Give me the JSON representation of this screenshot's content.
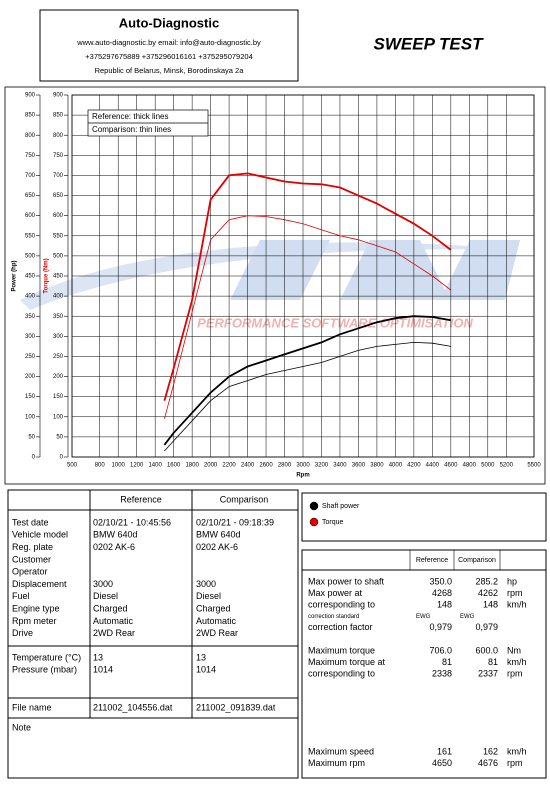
{
  "header": {
    "company": "Auto-Diagnostic",
    "contacts": "www.auto-diagnostic.by    email: info@auto-diagnostic.by",
    "phones": "+375297675889  +375296016161  +375295079204",
    "address": "Republic of Belarus, Minsk, Borodinskaya 2a",
    "title": "SWEEP TEST"
  },
  "chart_data": {
    "type": "line",
    "x_label": "Rpm",
    "y_label": "Power (hp)",
    "y2_label": "Torque (Nm)",
    "watermark": "PERFORMANCE SOFTWARE OPTIMISATION",
    "line_style_notes": [
      "Reference: thick lines",
      "Comparison: thin lines"
    ],
    "xlim": [
      500,
      5500
    ],
    "xticks": [
      500,
      800,
      1000,
      1200,
      1400,
      1600,
      1800,
      2000,
      2200,
      2400,
      2600,
      2800,
      3000,
      3200,
      3400,
      3600,
      3800,
      4000,
      4200,
      4400,
      4600,
      4800,
      5000,
      5200,
      5500
    ],
    "ylim": [
      0,
      900
    ],
    "yticks": [
      0,
      50,
      100,
      150,
      200,
      250,
      300,
      350,
      400,
      450,
      500,
      550,
      600,
      650,
      700,
      750,
      800,
      850,
      900
    ],
    "y2lim": [
      0,
      900
    ],
    "y2ticks": [
      0,
      50,
      100,
      150,
      200,
      250,
      300,
      350,
      400,
      450,
      500,
      550,
      600,
      650,
      700,
      750,
      800,
      850,
      900
    ],
    "grid": true,
    "x": [
      1500,
      1600,
      1800,
      2000,
      2200,
      2400,
      2600,
      2800,
      3000,
      3200,
      3400,
      3600,
      3800,
      4000,
      4200,
      4400,
      4600
    ],
    "series": [
      {
        "name": "Shaft power",
        "color": "#000000",
        "line_width": 1.8,
        "values": [
          30,
          60,
          110,
          160,
          200,
          225,
          240,
          255,
          270,
          285,
          305,
          320,
          335,
          345,
          350,
          348,
          340
        ]
      },
      {
        "name": "Shaft power",
        "color": "#000000",
        "line_width": 0.8,
        "values": [
          15,
          40,
          90,
          140,
          175,
          190,
          205,
          215,
          225,
          235,
          250,
          265,
          275,
          280,
          285,
          283,
          275
        ]
      },
      {
        "name": "Torque",
        "color": "#e00000",
        "line_width": 1.8,
        "axis": "y2",
        "values": [
          140,
          220,
          390,
          640,
          700,
          705,
          695,
          685,
          680,
          678,
          670,
          650,
          630,
          605,
          580,
          550,
          515
        ]
      },
      {
        "name": "Torque",
        "color": "#e00000",
        "line_width": 0.8,
        "axis": "y2",
        "values": [
          95,
          180,
          360,
          540,
          590,
          600,
          598,
          590,
          580,
          565,
          550,
          540,
          525,
          510,
          480,
          450,
          415
        ]
      }
    ]
  },
  "vehicle_table": {
    "columns": [
      "Reference",
      "Comparison"
    ],
    "groups": [
      [
        [
          "Test date",
          "02/10/21 - 10:45:56",
          "02/10/21 - 09:18:39"
        ],
        [
          "Vehicle model",
          "BMW 640d",
          "BMW 640d"
        ],
        [
          "Reg. plate",
          "0202 AK-6",
          "0202 AK-6"
        ],
        [
          "Customer"
        ],
        [
          "Operator"
        ],
        [
          "Displacement",
          "3000",
          "3000"
        ],
        [
          "Fuel",
          "Diesel",
          "Diesel"
        ],
        [
          "Engine type",
          "Charged",
          "Charged"
        ],
        [
          "Rpm meter",
          "Automatic",
          "Automatic"
        ],
        [
          "Drive",
          "2WD Rear",
          "2WD Rear"
        ]
      ],
      [
        [
          "Temperature (°C)",
          "13",
          "13"
        ],
        [
          "Pressure (mbar)",
          "1014",
          "1014"
        ]
      ],
      [
        [
          "File name",
          "211002_104556.dat",
          "211002_091839.dat"
        ]
      ],
      [
        [
          "Note"
        ]
      ]
    ]
  },
  "results_table": {
    "columns": [
      "Reference",
      "Comparison"
    ],
    "groups": [
      [
        [
          "Max power to shaft",
          "350.0",
          "285.2",
          "hp"
        ],
        [
          "Max power at",
          "4268",
          "4262",
          "rpm"
        ],
        [
          "corresponding to",
          "148",
          "148",
          "km/h"
        ],
        [
          "correction standard",
          "EWG",
          "EWG"
        ],
        [
          "correction factor",
          "0,979",
          "0,979"
        ]
      ],
      [
        [
          "Maximum torque",
          "706.0",
          "600.0",
          "Nm"
        ],
        [
          "Maximum torque at",
          "81",
          "81",
          "km/h"
        ],
        [
          "corresponding to",
          "2338",
          "2337",
          "rpm"
        ]
      ],
      [
        [
          "Maximum speed",
          "161",
          "162",
          "km/h"
        ],
        [
          "Maximum rpm",
          "4650",
          "4676",
          "rpm"
        ]
      ]
    ]
  }
}
